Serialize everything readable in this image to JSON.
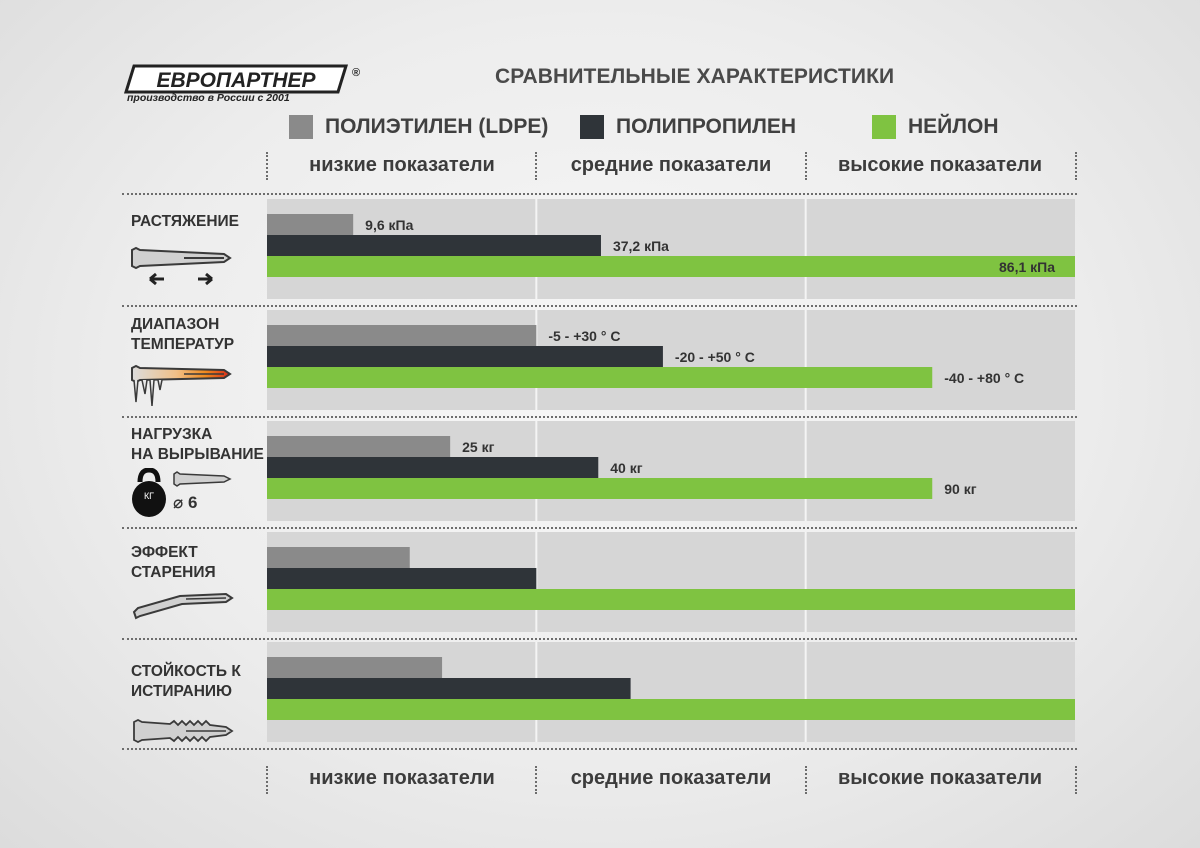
{
  "logo": {
    "name": "ЕВРОПАРТНЕР",
    "registered": "®",
    "tagline": "производство в России с 2001"
  },
  "title": "СРАВНИТЕЛЬНЫЕ ХАРАКТЕРИСТИКИ",
  "colors": {
    "ldpe": "#8a8a8a",
    "pp": "#2f3439",
    "nylon": "#7fc341",
    "band": "#d6d6d6"
  },
  "legend": [
    {
      "name": "ПОЛИЭТИЛЕН (LDPE)",
      "color": "#8a8a8a"
    },
    {
      "name": "ПОЛИПРОПИЛЕН",
      "color": "#2f3439"
    },
    {
      "name": "НЕЙЛОН",
      "color": "#7fc341"
    }
  ],
  "levels": [
    "низкие показатели",
    "средние показатели",
    "высокие показатели"
  ],
  "categories": [
    {
      "label1": "РАСТЯЖЕНИЕ",
      "label2": "",
      "icon": "dowel-stretch-icon"
    },
    {
      "label1": "ДИАПАЗОН",
      "label2": "ТЕМПЕРАТУР",
      "icon": "dowel-temperature-icon"
    },
    {
      "label1": "НАГРУЗКА",
      "label2": "НА ВЫРЫВАНИЕ",
      "icon": "kettlebell-dowel-icon",
      "extra": "⌀ 6"
    },
    {
      "label1": "ЭФФЕКТ",
      "label2": "СТАРЕНИЯ",
      "icon": "dowel-bent-icon"
    },
    {
      "label1": "СТОЙКОСТЬ К",
      "label2": "ИСТИРАНИЮ",
      "icon": "dowel-ribbed-icon"
    }
  ],
  "chart_data": {
    "type": "bar",
    "orientation": "horizontal",
    "title": "СРАВНИТЕЛЬНЫЕ ХАРАКТЕРИСТИКИ",
    "scale": "relative, 0 to 3 (низкие / средние / высокие показатели)",
    "xlim": [
      0,
      3
    ],
    "grid": true,
    "categories": [
      "РАСТЯЖЕНИЕ",
      "ДИАПАЗОН ТЕМПЕРАТУР",
      "НАГРУЗКА НА ВЫРЫВАНИЕ",
      "ЭФФЕКТ СТАРЕНИЯ",
      "СТОЙКОСТЬ К ИСТИРАНИЮ"
    ],
    "series": [
      {
        "name": "ПОЛИЭТИЛЕН (LDPE)",
        "values": [
          0.32,
          1.0,
          0.68,
          0.53,
          0.65
        ],
        "labels": [
          "9,6 кПа",
          "-5 - +30 ° C",
          "25 кг",
          "",
          ""
        ]
      },
      {
        "name": "ПОЛИПРОПИЛЕН",
        "values": [
          1.24,
          1.47,
          1.23,
          1.0,
          1.35
        ],
        "labels": [
          "37,2 кПа",
          "-20 - +50 ° C",
          "40 кг",
          "",
          ""
        ]
      },
      {
        "name": "НЕЙЛОН",
        "values": [
          3.0,
          2.47,
          2.47,
          3.0,
          3.0
        ],
        "labels": [
          "86,1 кПа",
          "-40 - +80 ° C",
          "90 кг",
          "",
          ""
        ]
      }
    ]
  }
}
